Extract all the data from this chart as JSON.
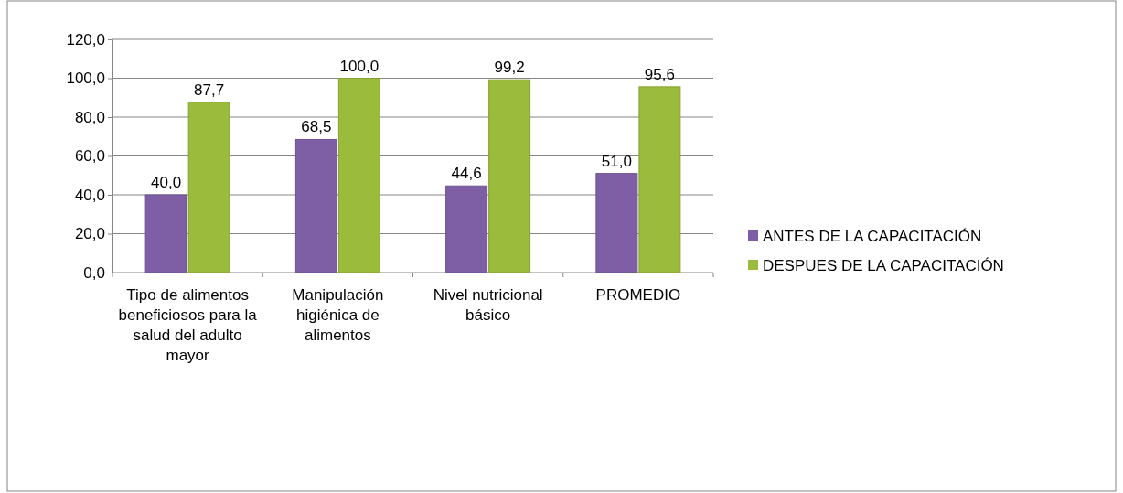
{
  "chart_data": {
    "type": "bar",
    "categories": [
      "Tipo de alimentos beneficiosos para la salud del adulto mayor",
      "Manipulación higiénica de alimentos",
      "Nivel nutricional básico",
      "PROMEDIO"
    ],
    "series": [
      {
        "name": "ANTES DE LA CAPACITACIÓN",
        "color": "#7e5fa6",
        "values": [
          40.0,
          68.5,
          44.6,
          51.0
        ],
        "value_labels": [
          "40,0",
          "68,5",
          "44,6",
          "51,0"
        ]
      },
      {
        "name": "DESPUES DE LA CAPACITACIÓN",
        "color": "#9bbb3c",
        "values": [
          87.7,
          100.0,
          99.2,
          95.6
        ],
        "value_labels": [
          "87,7",
          "100,0",
          "99,2",
          "95,6"
        ]
      }
    ],
    "ylim": [
      0,
      120
    ],
    "yticks": [
      {
        "value": 0,
        "label": "0,0"
      },
      {
        "value": 20,
        "label": "20,0"
      },
      {
        "value": 40,
        "label": "40,0"
      },
      {
        "value": 60,
        "label": "60,0"
      },
      {
        "value": 80,
        "label": "80,0"
      },
      {
        "value": 100,
        "label": "100,0"
      },
      {
        "value": 120,
        "label": "120,0"
      }
    ],
    "grid": "y",
    "legend": "right"
  }
}
